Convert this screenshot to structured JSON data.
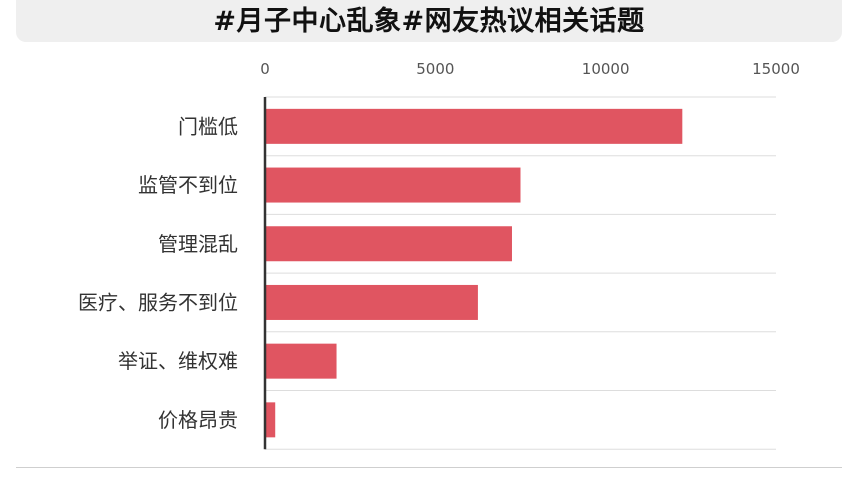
{
  "title": "#月子中心乱象#网友热议相关话题",
  "colors": {
    "bar": "#e05561",
    "grid": "#dddddd",
    "axis": "#333333",
    "banner": "#efefef"
  },
  "chart_data": {
    "type": "bar",
    "orientation": "horizontal",
    "title": "#月子中心乱象#网友热议相关话题",
    "xlabel": "",
    "ylabel": "",
    "xlim": [
      0,
      15000
    ],
    "xticks": [
      0,
      5000,
      10000,
      15000
    ],
    "categories": [
      "门槛低",
      "监管不到位",
      "管理混乱",
      "医疗、服务不到位",
      "举证、维权难",
      "价格昂贵"
    ],
    "values": [
      12250,
      7500,
      7250,
      6250,
      2100,
      300
    ],
    "grid": true,
    "legend": "none"
  }
}
